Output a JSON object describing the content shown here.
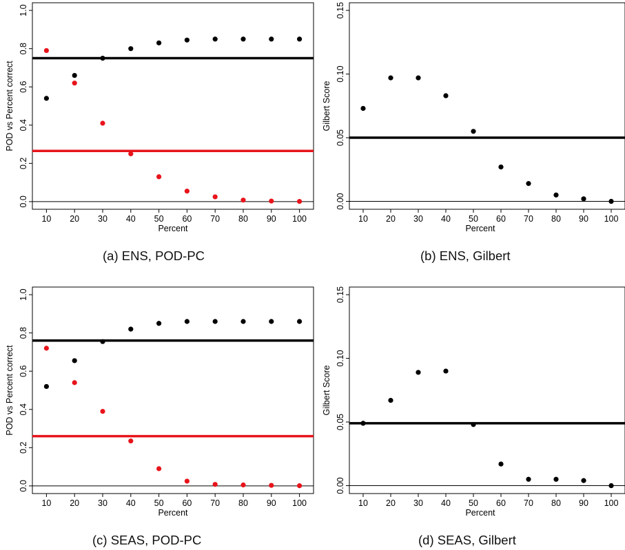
{
  "chart_data": [
    {
      "type": "scatter",
      "caption": "(a) ENS, POD-PC",
      "xlabel": "Percent",
      "ylabel": "POD vs Percent correct",
      "x_ticks": [
        10,
        20,
        30,
        40,
        50,
        60,
        70,
        80,
        90,
        100
      ],
      "y_ticks": [
        "0.0",
        "0.2",
        "0.4",
        "0.6",
        "0.8",
        "1.0"
      ],
      "xlim": [
        5,
        105
      ],
      "ylim": [
        -0.04,
        1.04
      ],
      "series": [
        {
          "color": "#000000",
          "x": [
            10,
            20,
            30,
            40,
            50,
            60,
            70,
            80,
            90,
            100
          ],
          "y": [
            0.54,
            0.66,
            0.75,
            0.8,
            0.83,
            0.845,
            0.85,
            0.85,
            0.85,
            0.85
          ]
        },
        {
          "color": "#e8141b",
          "x": [
            10,
            20,
            30,
            40,
            50,
            60,
            70,
            80,
            90,
            100
          ],
          "y": [
            0.79,
            0.62,
            0.41,
            0.25,
            0.13,
            0.055,
            0.025,
            0.008,
            0.003,
            0.001
          ]
        }
      ],
      "hlines": [
        {
          "y": 0.75,
          "color": "#000000",
          "weight": "thick"
        },
        {
          "y": 0.265,
          "color": "#e8141b",
          "weight": "thick"
        },
        {
          "y": 0.0,
          "color": "#000000",
          "weight": "thin"
        }
      ]
    },
    {
      "type": "scatter",
      "caption": "(b) ENS, Gilbert",
      "xlabel": "Percent",
      "ylabel": "Gilbert Score",
      "x_ticks": [
        10,
        20,
        30,
        40,
        50,
        60,
        70,
        80,
        90,
        100
      ],
      "y_ticks": [
        "0.00",
        "0.05",
        "0.10",
        "0.15"
      ],
      "xlim": [
        5,
        105
      ],
      "ylim": [
        -0.0062,
        0.156
      ],
      "series": [
        {
          "color": "#000000",
          "x": [
            10,
            20,
            30,
            40,
            50,
            60,
            70,
            80,
            90,
            100
          ],
          "y": [
            0.073,
            0.097,
            0.097,
            0.083,
            0.055,
            0.027,
            0.014,
            0.005,
            0.002,
            0.0
          ]
        }
      ],
      "hlines": [
        {
          "y": 0.05,
          "color": "#000000",
          "weight": "thick"
        },
        {
          "y": 0.0,
          "color": "#000000",
          "weight": "thin"
        }
      ]
    },
    {
      "type": "scatter",
      "caption": "(c) SEAS, POD-PC",
      "xlabel": "Percent",
      "ylabel": "POD vs Percent correct",
      "x_ticks": [
        10,
        20,
        30,
        40,
        50,
        60,
        70,
        80,
        90,
        100
      ],
      "y_ticks": [
        "0.0",
        "0.2",
        "0.4",
        "0.6",
        "0.8",
        "1.0"
      ],
      "xlim": [
        5,
        105
      ],
      "ylim": [
        -0.04,
        1.04
      ],
      "series": [
        {
          "color": "#000000",
          "x": [
            10,
            20,
            30,
            40,
            50,
            60,
            70,
            80,
            90,
            100
          ],
          "y": [
            0.52,
            0.655,
            0.755,
            0.82,
            0.85,
            0.86,
            0.86,
            0.86,
            0.86,
            0.86
          ]
        },
        {
          "color": "#e8141b",
          "x": [
            10,
            20,
            30,
            40,
            50,
            60,
            70,
            80,
            90,
            100
          ],
          "y": [
            0.72,
            0.54,
            0.39,
            0.235,
            0.09,
            0.025,
            0.008,
            0.005,
            0.003,
            0.001
          ]
        }
      ],
      "hlines": [
        {
          "y": 0.76,
          "color": "#000000",
          "weight": "thick"
        },
        {
          "y": 0.26,
          "color": "#e8141b",
          "weight": "thick"
        },
        {
          "y": 0.0,
          "color": "#000000",
          "weight": "thin"
        }
      ]
    },
    {
      "type": "scatter",
      "caption": "(d) SEAS, Gilbert",
      "xlabel": "Percent",
      "ylabel": "Gilbert Score",
      "x_ticks": [
        10,
        20,
        30,
        40,
        50,
        60,
        70,
        80,
        90,
        100
      ],
      "y_ticks": [
        "0.00",
        "0.05",
        "0.10",
        "0.15"
      ],
      "xlim": [
        5,
        105
      ],
      "ylim": [
        -0.0062,
        0.156
      ],
      "series": [
        {
          "color": "#000000",
          "x": [
            10,
            20,
            30,
            40,
            50,
            60,
            70,
            80,
            90,
            100
          ],
          "y": [
            0.049,
            0.067,
            0.089,
            0.09,
            0.048,
            0.017,
            0.005,
            0.005,
            0.004,
            0.0
          ]
        }
      ],
      "hlines": [
        {
          "y": 0.049,
          "color": "#000000",
          "weight": "thick"
        },
        {
          "y": 0.0,
          "color": "#000000",
          "weight": "thin"
        }
      ]
    }
  ]
}
